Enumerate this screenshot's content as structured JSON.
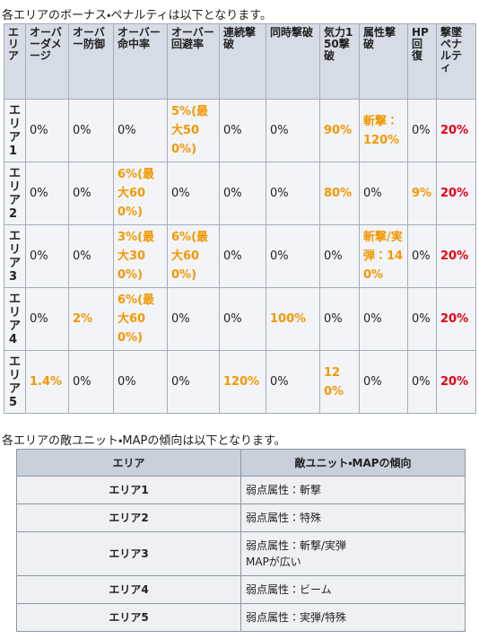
{
  "intro1": "各エリアのボーナス・ペナルティは以下となります。",
  "bonus_table": {
    "headers": [
      "エリア",
      "オーバーダメージ",
      "オーバー防御",
      "オーバー命中率",
      "オーバー回避率",
      "連続撃破",
      "同時撃破",
      "気力150撃破",
      "属性撃破",
      "HP回復",
      "撃墜ペナルティ"
    ],
    "rows": [
      {
        "area": "エリア1",
        "cells": [
          "0%",
          "0%",
          "0%",
          {
            "text": "5%(最大500%)",
            "color": "#f39800"
          },
          "0%",
          "0%",
          {
            "text": "90%",
            "color": "#f39800"
          },
          {
            "text": "斬撃：120%",
            "color": "#f39800"
          },
          "0%",
          {
            "text": "20%",
            "color": "#e60012"
          }
        ]
      },
      {
        "area": "エリア2",
        "cells": [
          "0%",
          "0%",
          {
            "text": "6%(最大600%)",
            "color": "#f39800"
          },
          "0%",
          "0%",
          "0%",
          {
            "text": "80%",
            "color": "#f39800"
          },
          "0%",
          {
            "text": "9%",
            "color": "#f39800"
          },
          {
            "text": "20%",
            "color": "#e60012"
          }
        ]
      },
      {
        "area": "エリア3",
        "cells": [
          "0%",
          "0%",
          {
            "text": "3%(最大300%)",
            "color": "#f39800"
          },
          {
            "text": "6%(最大600%)",
            "color": "#f39800"
          },
          "0%",
          "0%",
          "0%",
          {
            "text": "斬撃/実弾：140%",
            "color": "#f39800"
          },
          "0%",
          {
            "text": "20%",
            "color": "#e60012"
          }
        ]
      },
      {
        "area": "エリア4",
        "cells": [
          "0%",
          {
            "text": "2%",
            "color": "#f39800"
          },
          {
            "text": "6%(最大600%)",
            "color": "#f39800"
          },
          "0%",
          "0%",
          {
            "text": "100%",
            "color": "#f39800"
          },
          "0%",
          "0%",
          "0%",
          {
            "text": "20%",
            "color": "#e60012"
          }
        ]
      },
      {
        "area": "エリア5",
        "cells": [
          {
            "text": "1.4%",
            "color": "#f39800"
          },
          "0%",
          "0%",
          "0%",
          {
            "text": "120%",
            "color": "#f39800"
          },
          "0%",
          {
            "text": "120%",
            "color": "#f39800"
          },
          "0%",
          "0%",
          {
            "text": "20%",
            "color": "#e60012"
          }
        ]
      }
    ]
  },
  "intro2": "各エリアの敵ユニット・MAPの傾向は以下となります。",
  "trend_table": {
    "headers": [
      "エリア",
      "敵ユニット・MAPの傾向"
    ],
    "rows": [
      {
        "area": "エリア1",
        "lines": [
          "弱点属性：斬撃"
        ]
      },
      {
        "area": "エリア2",
        "lines": [
          "弱点属性：特殊"
        ]
      },
      {
        "area": "エリア3",
        "lines": [
          "弱点属性：斬撃/実弾",
          "MAPが広い"
        ]
      },
      {
        "area": "エリア4",
        "lines": [
          "弱点属性：ビーム"
        ]
      },
      {
        "area": "エリア5",
        "lines": [
          "弱点属性：実弾/特殊"
        ]
      }
    ]
  }
}
